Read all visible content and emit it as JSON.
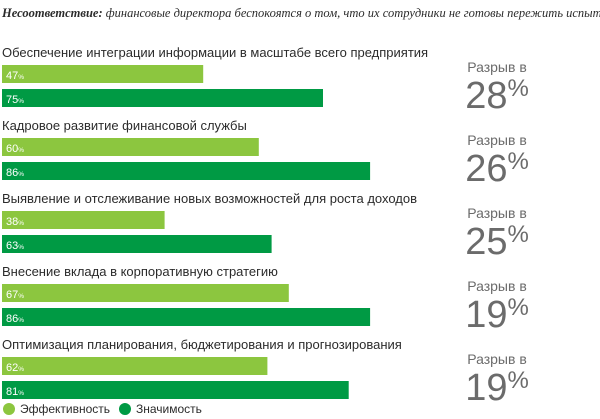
{
  "title": {
    "lead": "Несоответствие:",
    "rest": "финансовые директора беспокоятся о том, что их сотрудники не готовы пережить испытания"
  },
  "colors": {
    "effectiveness": "#8cc63f",
    "importance": "#009a44",
    "text": "#2b2b2b",
    "gap_text": "#6b6b6b"
  },
  "chart_data": {
    "type": "bar",
    "orientation": "horizontal",
    "title": "Несоответствие: финансовые директора беспокоятся о том, что их сотрудники не готовы пережить испытания",
    "xlim": [
      0,
      100
    ],
    "unit": "%",
    "categories": [
      "Обеспечение интеграции информации в масштабе всего предприятия",
      "Кадровое развитие финансовой службы",
      "Выявление и отслеживание новых возможностей для роста доходов",
      "Внесение вклада в корпоративную стратегию",
      "Оптимизация планирования, бюджетирования и прогнозирования"
    ],
    "series": [
      {
        "name": "Эффективность",
        "color": "#8cc63f",
        "values": [
          47,
          60,
          38,
          67,
          62
        ]
      },
      {
        "name": "Значимость",
        "color": "#009a44",
        "values": [
          75,
          86,
          63,
          86,
          81
        ]
      }
    ],
    "gap_label": "Разрыв в",
    "gaps": [
      28,
      26,
      25,
      19,
      19
    ],
    "pct_sign": "%",
    "legend": [
      "Эффективность",
      "Значимость"
    ],
    "legend_position": "bottom-left"
  }
}
